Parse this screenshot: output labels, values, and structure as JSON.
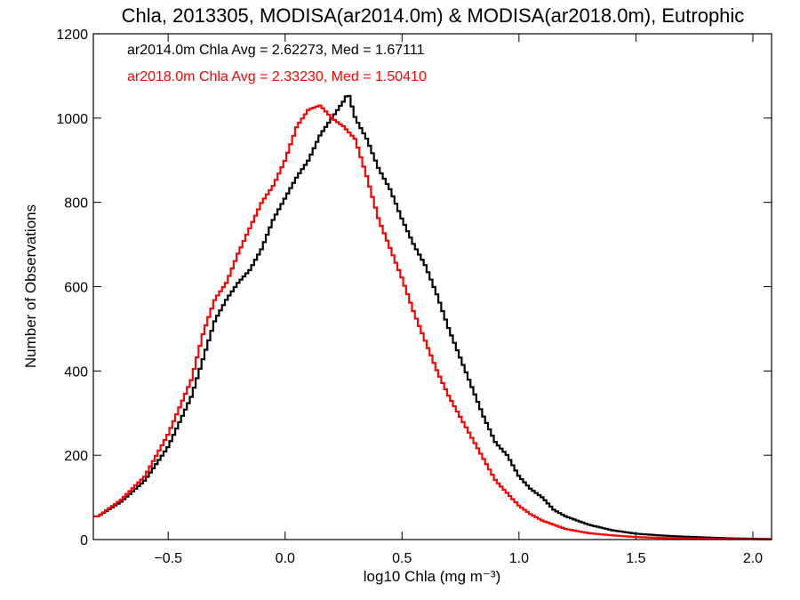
{
  "chart_data": {
    "type": "line",
    "title": "Chla, 2013305, MODISA(ar2014.0m) & MODISA(ar2018.0m), Eutrophic",
    "xlabel": "log10 Chla (mg m⁻³)",
    "ylabel": "Number of Observations",
    "xlim": [
      -0.82,
      2.08
    ],
    "ylim": [
      0,
      1200
    ],
    "x_ticks": [
      -0.5,
      0.0,
      0.5,
      1.0,
      1.5,
      2.0
    ],
    "x_tick_labels": [
      "−0.5",
      "0.0",
      "0.5",
      "1.0",
      "1.5",
      "2.0"
    ],
    "y_ticks": [
      0,
      200,
      400,
      600,
      800,
      1000,
      1200
    ],
    "y_tick_labels": [
      "0",
      "200",
      "400",
      "600",
      "800",
      "1000",
      "1200"
    ],
    "grid": false,
    "annotations": [
      {
        "text": "ar2014.0m Chla Avg = 2.62273, Med = 1.67111",
        "color": "#000000"
      },
      {
        "text": "ar2018.0m Chla Avg = 2.33230, Med = 1.50410",
        "color": "#ff0000"
      }
    ],
    "series": [
      {
        "color": "#000000",
        "x": [
          -0.8,
          -0.7,
          -0.6,
          -0.5,
          -0.4,
          -0.35,
          -0.3,
          -0.25,
          -0.2,
          -0.15,
          -0.1,
          -0.05,
          0.0,
          0.05,
          0.1,
          0.15,
          0.2,
          0.25,
          0.27,
          0.3,
          0.35,
          0.4,
          0.45,
          0.5,
          0.55,
          0.6,
          0.65,
          0.7,
          0.75,
          0.8,
          0.85,
          0.9,
          0.95,
          1.0,
          1.05,
          1.1,
          1.15,
          1.2,
          1.3,
          1.4,
          1.5,
          1.6,
          1.7,
          1.8,
          1.9,
          2.0,
          2.08
        ],
        "y": [
          55,
          90,
          140,
          220,
          340,
          430,
          520,
          570,
          610,
          640,
          690,
          760,
          810,
          860,
          900,
          960,
          1000,
          1040,
          1060,
          1000,
          950,
          880,
          830,
          760,
          700,
          650,
          580,
          500,
          430,
          360,
          290,
          230,
          200,
          150,
          120,
          100,
          70,
          55,
          35,
          22,
          14,
          10,
          7,
          5,
          3,
          2,
          1
        ]
      },
      {
        "color": "#ff0000",
        "x": [
          -0.8,
          -0.7,
          -0.6,
          -0.5,
          -0.4,
          -0.35,
          -0.3,
          -0.25,
          -0.2,
          -0.15,
          -0.1,
          -0.05,
          0.0,
          0.05,
          0.1,
          0.15,
          0.2,
          0.25,
          0.3,
          0.35,
          0.4,
          0.45,
          0.5,
          0.55,
          0.6,
          0.65,
          0.7,
          0.75,
          0.8,
          0.85,
          0.9,
          0.95,
          1.0,
          1.05,
          1.1,
          1.15,
          1.2,
          1.3,
          1.4,
          1.5,
          1.6,
          1.7,
          1.8,
          1.9,
          2.0,
          2.08
        ],
        "y": [
          55,
          95,
          150,
          250,
          380,
          490,
          570,
          610,
          680,
          740,
          800,
          840,
          900,
          980,
          1020,
          1030,
          1000,
          980,
          950,
          860,
          760,
          690,
          620,
          540,
          470,
          400,
          340,
          290,
          240,
          190,
          140,
          110,
          80,
          60,
          45,
          35,
          25,
          15,
          10,
          6,
          4,
          3,
          2,
          1,
          1,
          0
        ]
      }
    ]
  }
}
